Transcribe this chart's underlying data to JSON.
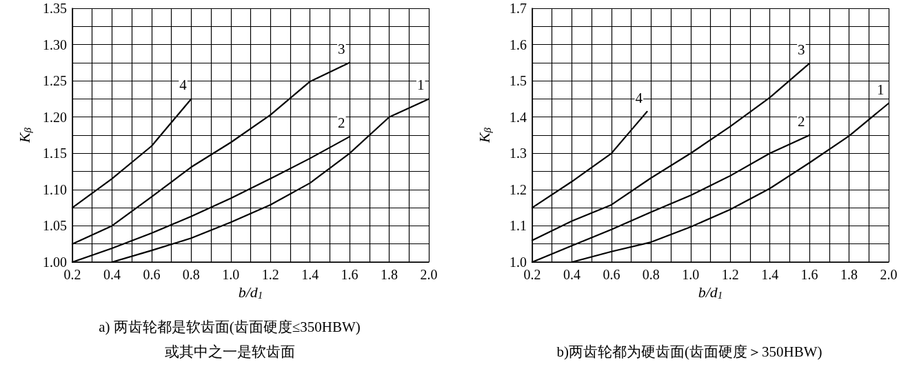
{
  "chart_data": [
    {
      "type": "line",
      "title": "a) 两齿轮都是软齿面(齿面硬度≤350HBW)\n或其中之一是软齿面",
      "xlabel": "b/d$_{1}$",
      "ylabel": "K$_{β}$",
      "xlim": [
        0.2,
        2.0
      ],
      "ylim": [
        1.0,
        1.35
      ],
      "xticks": [
        {
          "value": 0.2,
          "label": "0.2"
        },
        {
          "value": 0.4,
          "label": "0.4"
        },
        {
          "value": 0.6,
          "label": "0.6"
        },
        {
          "value": 0.8,
          "label": "0.8"
        },
        {
          "value": 1.0,
          "label": "1.0"
        },
        {
          "value": 1.2,
          "label": "1.2"
        },
        {
          "value": 1.4,
          "label": "1.4"
        },
        {
          "value": 1.6,
          "label": "1.6"
        },
        {
          "value": 1.8,
          "label": "1.8"
        },
        {
          "value": 2.0,
          "label": "2.0"
        }
      ],
      "yticks": [
        {
          "value": 1.0,
          "label": "1.00"
        },
        {
          "value": 1.05,
          "label": "1.05"
        },
        {
          "value": 1.1,
          "label": "1.10"
        },
        {
          "value": 1.15,
          "label": "1.15"
        },
        {
          "value": 1.2,
          "label": "1.20"
        },
        {
          "value": 1.25,
          "label": "1.25"
        },
        {
          "value": 1.3,
          "label": "1.30"
        },
        {
          "value": 1.35,
          "label": "1.35"
        }
      ],
      "grid": true,
      "legend": false,
      "marker": "none",
      "line_style": "solid",
      "series": [
        {
          "name": "1",
          "color": "#000000",
          "x": [
            0.4,
            0.6,
            0.8,
            1.0,
            1.2,
            1.4,
            1.6,
            1.8,
            2.0
          ],
          "values": [
            1.0,
            1.016,
            1.033,
            1.055,
            1.079,
            1.109,
            1.15,
            1.2,
            1.225
          ]
        },
        {
          "name": "2",
          "color": "#000000",
          "x": [
            0.2,
            0.4,
            0.6,
            0.8,
            1.0,
            1.2,
            1.4,
            1.6
          ],
          "values": [
            1.0,
            1.019,
            1.04,
            1.063,
            1.088,
            1.115,
            1.143,
            1.173
          ]
        },
        {
          "name": "3",
          "color": "#000000",
          "x": [
            0.2,
            0.4,
            0.6,
            0.8,
            1.0,
            1.2,
            1.4,
            1.6
          ],
          "values": [
            1.025,
            1.05,
            1.09,
            1.131,
            1.165,
            1.203,
            1.249,
            1.275
          ]
        },
        {
          "name": "4",
          "color": "#000000",
          "x": [
            0.2,
            0.4,
            0.6,
            0.8
          ],
          "values": [
            1.075,
            1.115,
            1.16,
            1.225
          ]
        }
      ]
    },
    {
      "type": "line",
      "title": "b)两齿轮都为硬齿面(齿面硬度＞350HBW)",
      "xlabel": "b/d$_{1}$",
      "ylabel": "K$_{β}$",
      "xlim": [
        0.2,
        2.0
      ],
      "ylim": [
        1.0,
        1.7
      ],
      "xticks": [
        {
          "value": 0.2,
          "label": "0.2"
        },
        {
          "value": 0.4,
          "label": "0.4"
        },
        {
          "value": 0.6,
          "label": "0.6"
        },
        {
          "value": 0.8,
          "label": "0.8"
        },
        {
          "value": 1.0,
          "label": "1.0"
        },
        {
          "value": 1.2,
          "label": "1.2"
        },
        {
          "value": 1.4,
          "label": "1.4"
        },
        {
          "value": 1.6,
          "label": "1.6"
        },
        {
          "value": 1.8,
          "label": "1.8"
        },
        {
          "value": 2.0,
          "label": "2.0"
        }
      ],
      "yticks": [
        {
          "value": 1.0,
          "label": "1.0"
        },
        {
          "value": 1.1,
          "label": "1.1"
        },
        {
          "value": 1.2,
          "label": "1.2"
        },
        {
          "value": 1.3,
          "label": "1.3"
        },
        {
          "value": 1.4,
          "label": "1.4"
        },
        {
          "value": 1.5,
          "label": "1.5"
        },
        {
          "value": 1.6,
          "label": "1.6"
        },
        {
          "value": 1.7,
          "label": "1.7"
        }
      ],
      "grid": true,
      "legend": false,
      "marker": "none",
      "line_style": "solid",
      "series": [
        {
          "name": "1",
          "color": "#000000",
          "x": [
            0.4,
            0.6,
            0.8,
            1.0,
            1.2,
            1.4,
            1.6,
            1.8,
            2.0
          ],
          "values": [
            1.0,
            1.029,
            1.055,
            1.097,
            1.145,
            1.203,
            1.274,
            1.348,
            1.438
          ]
        },
        {
          "name": "2",
          "color": "#000000",
          "x": [
            0.2,
            0.4,
            0.6,
            0.8,
            1.0,
            1.2,
            1.4,
            1.6
          ],
          "values": [
            1.0,
            1.045,
            1.09,
            1.138,
            1.184,
            1.238,
            1.3,
            1.35
          ]
        },
        {
          "name": "3",
          "color": "#000000",
          "x": [
            0.2,
            0.4,
            0.6,
            0.8,
            1.0,
            1.2,
            1.4,
            1.6
          ],
          "values": [
            1.06,
            1.113,
            1.158,
            1.232,
            1.3,
            1.374,
            1.454,
            1.548
          ]
        },
        {
          "name": "4",
          "color": "#000000",
          "x": [
            0.2,
            0.4,
            0.6,
            0.7,
            0.78
          ],
          "values": [
            1.15,
            1.222,
            1.3,
            1.364,
            1.415
          ]
        }
      ]
    }
  ]
}
